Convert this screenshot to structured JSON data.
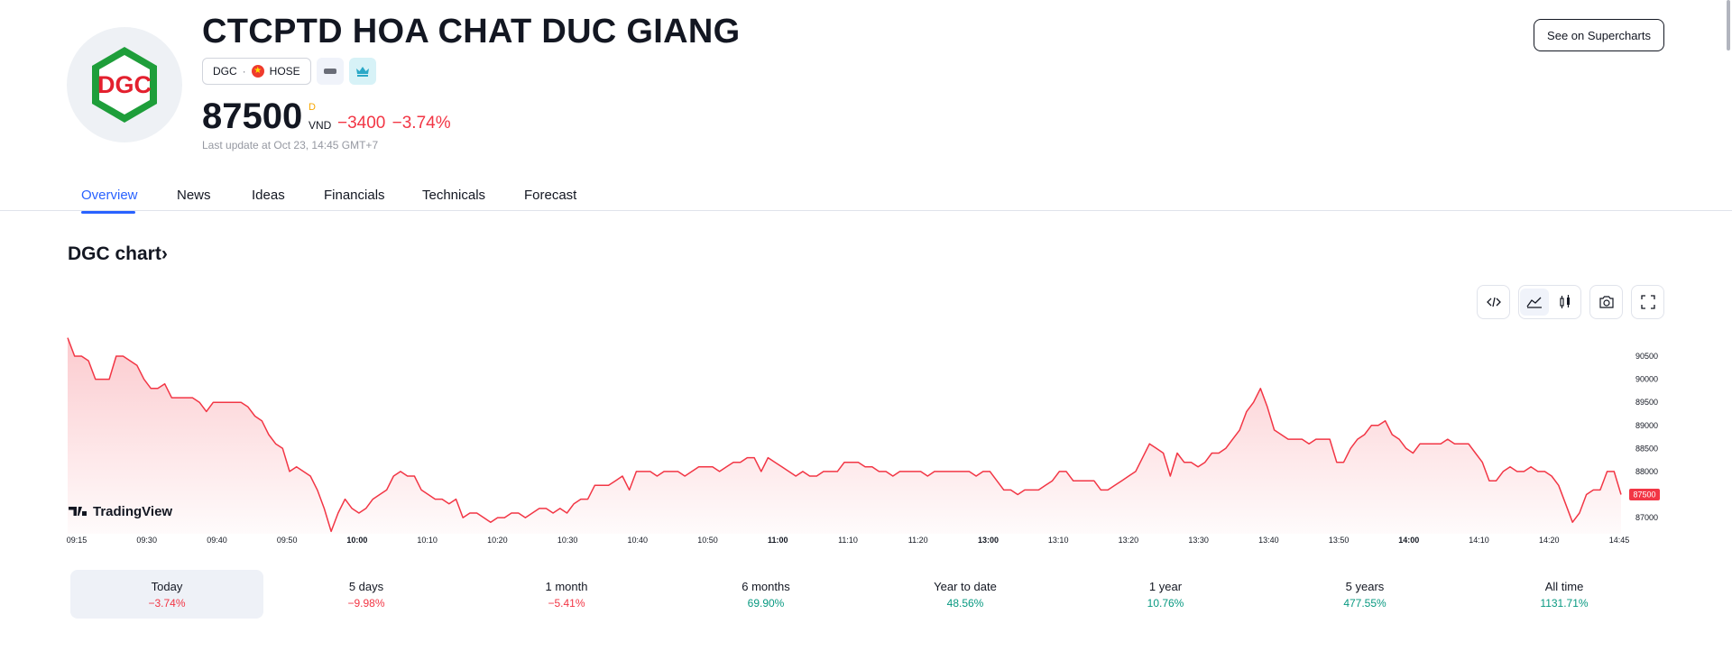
{
  "header": {
    "logo_text": "DGC",
    "company_name": "CTCPTD HOA CHAT DUC GIANG",
    "symbol": "DGC",
    "separator": "·",
    "exchange": "HOSE",
    "price": "87500",
    "price_flag": "D",
    "currency": "VND",
    "change": "−3400 −3.74%",
    "last_update": "Last update at Oct 23, 14:45 GMT+7",
    "supercharts_label": "See on Supercharts",
    "icons": {
      "exchange_flag": "vietnam-flag-icon",
      "grey_badge": "minus-badge-icon",
      "cyan_badge": "crown-icon"
    }
  },
  "tabs": [
    "Overview",
    "News",
    "Ideas",
    "Financials",
    "Technicals",
    "Forecast"
  ],
  "active_tab": "Overview",
  "chart_section": {
    "heading": "DGC chart",
    "heading_arrow": "›",
    "watermark": "TradingView",
    "toolbar_icons": [
      "embed-code-icon",
      "area-chart-icon",
      "candles-icon",
      "camera-icon",
      "fullscreen-icon"
    ],
    "selected_tool": "area-chart-icon"
  },
  "chart_data": {
    "type": "area",
    "x_ticks": [
      "09:15",
      "09:30",
      "09:40",
      "09:50",
      "10:00",
      "10:10",
      "10:20",
      "10:30",
      "10:40",
      "10:50",
      "11:00",
      "11:10",
      "11:20",
      "13:00",
      "13:10",
      "13:20",
      "13:30",
      "13:40",
      "13:50",
      "14:00",
      "14:10",
      "14:20",
      "14:45"
    ],
    "bold_x_ticks": [
      "10:00",
      "11:00",
      "13:00",
      "14:00"
    ],
    "y_ticks": [
      90500,
      90000,
      89500,
      89000,
      88500,
      88000,
      87500,
      87000
    ],
    "ylim": [
      86650,
      90950
    ],
    "last_price": 87500,
    "line_color": "#f23645",
    "fill_color": "#f23645",
    "series": [
      {
        "values": [
          90900,
          90500,
          90500,
          90400,
          90000,
          90000,
          90000,
          90500,
          90500,
          90400,
          90300,
          90000,
          89800,
          89800,
          89900,
          89600,
          89600,
          89600,
          89600,
          89500,
          89300,
          89500,
          89500,
          89500,
          89500,
          89500,
          89400,
          89200,
          89100,
          88800,
          88600,
          88500,
          88000,
          88100,
          88000,
          87900,
          87600,
          87200,
          86700,
          87100,
          87400,
          87200,
          87100,
          87200,
          87400,
          87500,
          87600,
          87900,
          88000,
          87900,
          87900,
          87600,
          87500,
          87400,
          87400,
          87300,
          87400,
          87000,
          87100,
          87100,
          87000,
          86900,
          87000,
          87000,
          87100,
          87100,
          87000,
          87100,
          87200,
          87200,
          87100,
          87200,
          87100,
          87300,
          87400,
          87400,
          87700,
          87700,
          87700,
          87800,
          87900,
          87600,
          88000,
          88000,
          88000,
          87900,
          88000,
          88000,
          88000,
          87900,
          88000,
          88100,
          88100,
          88100,
          88000,
          88100,
          88200,
          88200,
          88300,
          88300,
          88000,
          88300,
          88200,
          88100,
          88000,
          87900,
          88000,
          87900,
          87900,
          88000,
          88000,
          88000,
          88200,
          88200,
          88200,
          88100,
          88100,
          88000,
          88000,
          87900,
          88000,
          88000,
          88000,
          88000,
          87900,
          88000,
          88000,
          88000,
          88000,
          88000,
          88000,
          87900,
          88000,
          88000,
          87800,
          87600,
          87600,
          87500,
          87600,
          87600,
          87600,
          87700,
          87800,
          88000,
          88000,
          87800,
          87800,
          87800,
          87800,
          87600,
          87600,
          87700,
          87800,
          87900,
          88000,
          88300,
          88600,
          88500,
          88400,
          87900,
          88400,
          88200,
          88200,
          88100,
          88200,
          88400,
          88400,
          88500,
          88700,
          88900,
          89300,
          89500,
          89800,
          89400,
          88900,
          88800,
          88700,
          88700,
          88700,
          88600,
          88700,
          88700,
          88700,
          88200,
          88200,
          88500,
          88700,
          88800,
          89000,
          89000,
          89100,
          88800,
          88700,
          88500,
          88400,
          88600,
          88600,
          88600,
          88600,
          88700,
          88600,
          88600,
          88600,
          88400,
          88200,
          87800,
          87800,
          88000,
          88100,
          88000,
          88000,
          88100,
          88000,
          88000,
          87900,
          87700,
          87300,
          86900,
          87100,
          87500,
          87600,
          87600,
          88000,
          88000,
          87500
        ]
      }
    ]
  },
  "ranges": [
    {
      "label": "Today",
      "value": "−3.74%",
      "trend": "neg"
    },
    {
      "label": "5 days",
      "value": "−9.98%",
      "trend": "neg"
    },
    {
      "label": "1 month",
      "value": "−5.41%",
      "trend": "neg"
    },
    {
      "label": "6 months",
      "value": "69.90%",
      "trend": "pos"
    },
    {
      "label": "Year to date",
      "value": "48.56%",
      "trend": "pos"
    },
    {
      "label": "1 year",
      "value": "10.76%",
      "trend": "pos"
    },
    {
      "label": "5 years",
      "value": "477.55%",
      "trend": "pos"
    },
    {
      "label": "All time",
      "value": "1131.71%",
      "trend": "pos"
    }
  ],
  "active_range": "Today"
}
